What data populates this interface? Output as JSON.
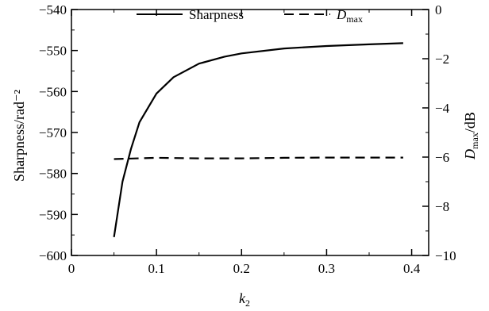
{
  "chart_data": {
    "type": "line",
    "title": "",
    "xlabel": "k",
    "xlabel_sub": "2",
    "ylabel_left": "Sharpness/rad⁻²",
    "ylabel_right_main": "D",
    "ylabel_right_sub": "max",
    "ylabel_right_unit": "/dB",
    "xlim": [
      0,
      0.42
    ],
    "ylim_left": [
      -600,
      -540
    ],
    "ylim_right": [
      -10,
      0
    ],
    "x_ticks": [
      0,
      0.1,
      0.2,
      0.3,
      0.4
    ],
    "x_tick_labels": [
      "0",
      "0.1",
      "0.2",
      "0.3",
      "0.4"
    ],
    "y_left_ticks": [
      -540,
      -550,
      -560,
      -570,
      -580,
      -590,
      -600
    ],
    "y_left_tick_labels": [
      "−540",
      "−550",
      "−560",
      "−570",
      "−580",
      "−590",
      "−600"
    ],
    "y_right_ticks": [
      0,
      -2,
      -4,
      -6,
      -8,
      -10
    ],
    "y_right_tick_labels": [
      "0",
      "−2",
      "−4",
      "−6",
      "−8",
      "−10"
    ],
    "grid": false,
    "legend_position": "top",
    "series": [
      {
        "name": "Sharpness",
        "axis": "left",
        "style": "solid",
        "color": "#000000",
        "x": [
          0.05,
          0.06,
          0.07,
          0.08,
          0.1,
          0.12,
          0.15,
          0.18,
          0.2,
          0.25,
          0.3,
          0.35,
          0.39
        ],
        "y": [
          -595.5,
          -582,
          -574,
          -567.5,
          -560.5,
          -556.5,
          -553.2,
          -551.5,
          -550.7,
          -549.5,
          -548.9,
          -548.5,
          -548.2
        ]
      },
      {
        "name_main": "D",
        "name_sub": "max",
        "axis": "right",
        "style": "dashed",
        "color": "#000000",
        "x": [
          0.05,
          0.1,
          0.15,
          0.2,
          0.25,
          0.3,
          0.35,
          0.39
        ],
        "y": [
          -6.08,
          -6.03,
          -6.05,
          -6.05,
          -6.03,
          -6.02,
          -6.02,
          -6.02
        ]
      }
    ]
  }
}
